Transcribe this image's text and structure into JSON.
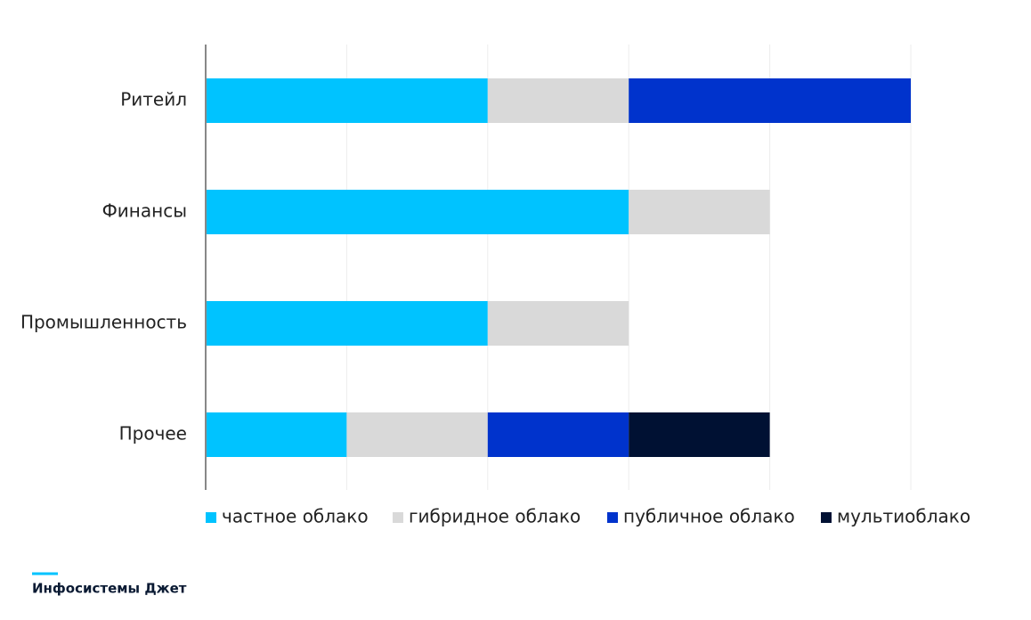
{
  "chart_data": {
    "type": "stacked-bar-horizontal",
    "categories": [
      "Ритейл",
      "Финансы",
      "Промышленность",
      "Прочее"
    ],
    "series": [
      {
        "name": "частное облако",
        "color": "#00c3ff",
        "values": [
          2,
          3,
          2,
          1
        ]
      },
      {
        "name": "гибридное облако",
        "color": "#d9d9d9",
        "values": [
          1,
          1,
          1,
          1
        ]
      },
      {
        "name": "публичное облако",
        "color": "#0033cc",
        "values": [
          2,
          0,
          0,
          1
        ]
      },
      {
        "name": "мультиоблако",
        "color": "#001133",
        "values": [
          0,
          0,
          0,
          1
        ]
      }
    ],
    "xlim": [
      0,
      5
    ],
    "xticks": [
      0,
      1,
      2,
      3,
      4,
      5
    ],
    "grid": true,
    "legend": "bottom"
  },
  "footer": {
    "brand": "Инфосистемы Джет"
  }
}
